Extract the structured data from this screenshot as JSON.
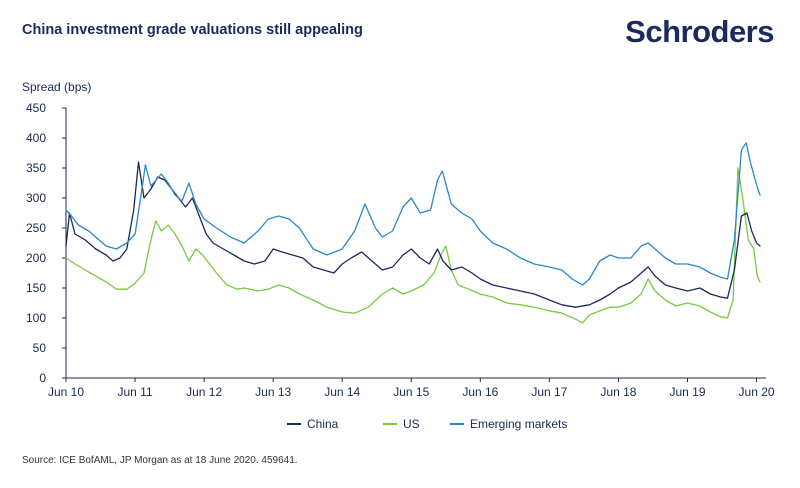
{
  "header": {
    "title": "China investment grade valuations still appealing",
    "logo": "Schroders"
  },
  "footer": {
    "source": "Source: ICE BofAML, JP Morgan as at 18 June 2020. 459641."
  },
  "colors": {
    "china": "#1c2b5a",
    "us": "#7ac943",
    "em": "#2b88c8",
    "axis": "#1b2a4a"
  },
  "chart_data": {
    "type": "line",
    "title": "China investment grade valuations still appealing",
    "ylabel": "Spread (bps)",
    "xlabel": "",
    "ylim": [
      0,
      450
    ],
    "yticks": [
      0,
      50,
      100,
      150,
      200,
      250,
      300,
      350,
      400,
      450
    ],
    "xlim": [
      2010.42,
      2020.47
    ],
    "xticks": [
      {
        "label": "Jun 10",
        "value": 2010.42
      },
      {
        "label": "Jun 11",
        "value": 2011.42
      },
      {
        "label": "Jun 12",
        "value": 2012.42
      },
      {
        "label": "Jun 13",
        "value": 2013.42
      },
      {
        "label": "Jun 14",
        "value": 2014.42
      },
      {
        "label": "Jun 15",
        "value": 2015.42
      },
      {
        "label": "Jun 16",
        "value": 2016.42
      },
      {
        "label": "Jun 17",
        "value": 2017.42
      },
      {
        "label": "Jun 18",
        "value": 2018.42
      },
      {
        "label": "Jun 19",
        "value": 2019.42
      },
      {
        "label": "Jun 20",
        "value": 2020.42
      }
    ],
    "grid": false,
    "legend_position": "bottom",
    "series": [
      {
        "name": "China",
        "color_key": "china",
        "points": [
          [
            2010.42,
            220
          ],
          [
            2010.47,
            275
          ],
          [
            2010.55,
            240
          ],
          [
            2010.7,
            230
          ],
          [
            2010.85,
            215
          ],
          [
            2011.0,
            205
          ],
          [
            2011.1,
            195
          ],
          [
            2011.2,
            200
          ],
          [
            2011.3,
            215
          ],
          [
            2011.4,
            280
          ],
          [
            2011.47,
            360
          ],
          [
            2011.55,
            300
          ],
          [
            2011.65,
            315
          ],
          [
            2011.75,
            335
          ],
          [
            2011.85,
            330
          ],
          [
            2011.95,
            315
          ],
          [
            2012.05,
            300
          ],
          [
            2012.15,
            285
          ],
          [
            2012.25,
            300
          ],
          [
            2012.35,
            270
          ],
          [
            2012.45,
            240
          ],
          [
            2012.55,
            225
          ],
          [
            2012.7,
            215
          ],
          [
            2012.85,
            205
          ],
          [
            2013.0,
            195
          ],
          [
            2013.15,
            190
          ],
          [
            2013.3,
            195
          ],
          [
            2013.42,
            215
          ],
          [
            2013.55,
            210
          ],
          [
            2013.7,
            205
          ],
          [
            2013.85,
            200
          ],
          [
            2014.0,
            185
          ],
          [
            2014.15,
            180
          ],
          [
            2014.3,
            175
          ],
          [
            2014.42,
            190
          ],
          [
            2014.55,
            200
          ],
          [
            2014.7,
            210
          ],
          [
            2014.85,
            195
          ],
          [
            2015.0,
            180
          ],
          [
            2015.15,
            185
          ],
          [
            2015.3,
            205
          ],
          [
            2015.42,
            215
          ],
          [
            2015.55,
            200
          ],
          [
            2015.68,
            190
          ],
          [
            2015.8,
            215
          ],
          [
            2015.88,
            195
          ],
          [
            2016.0,
            180
          ],
          [
            2016.15,
            185
          ],
          [
            2016.3,
            175
          ],
          [
            2016.42,
            165
          ],
          [
            2016.6,
            155
          ],
          [
            2016.8,
            150
          ],
          [
            2017.0,
            145
          ],
          [
            2017.2,
            140
          ],
          [
            2017.42,
            130
          ],
          [
            2017.6,
            122
          ],
          [
            2017.8,
            118
          ],
          [
            2018.0,
            122
          ],
          [
            2018.15,
            130
          ],
          [
            2018.3,
            140
          ],
          [
            2018.42,
            150
          ],
          [
            2018.6,
            160
          ],
          [
            2018.75,
            175
          ],
          [
            2018.85,
            185
          ],
          [
            2018.95,
            170
          ],
          [
            2019.1,
            155
          ],
          [
            2019.25,
            150
          ],
          [
            2019.42,
            145
          ],
          [
            2019.6,
            150
          ],
          [
            2019.75,
            140
          ],
          [
            2019.9,
            135
          ],
          [
            2020.0,
            133
          ],
          [
            2020.1,
            180
          ],
          [
            2020.2,
            270
          ],
          [
            2020.28,
            275
          ],
          [
            2020.35,
            245
          ],
          [
            2020.42,
            225
          ],
          [
            2020.47,
            220
          ]
        ]
      },
      {
        "name": "US",
        "color_key": "us",
        "points": [
          [
            2010.42,
            200
          ],
          [
            2010.55,
            190
          ],
          [
            2010.7,
            180
          ],
          [
            2010.85,
            170
          ],
          [
            2011.0,
            160
          ],
          [
            2011.15,
            148
          ],
          [
            2011.3,
            148
          ],
          [
            2011.42,
            158
          ],
          [
            2011.55,
            175
          ],
          [
            2011.65,
            230
          ],
          [
            2011.72,
            262
          ],
          [
            2011.8,
            245
          ],
          [
            2011.9,
            255
          ],
          [
            2012.0,
            240
          ],
          [
            2012.1,
            220
          ],
          [
            2012.2,
            195
          ],
          [
            2012.3,
            215
          ],
          [
            2012.4,
            205
          ],
          [
            2012.5,
            190
          ],
          [
            2012.6,
            175
          ],
          [
            2012.75,
            155
          ],
          [
            2012.9,
            148
          ],
          [
            2013.0,
            150
          ],
          [
            2013.2,
            145
          ],
          [
            2013.35,
            148
          ],
          [
            2013.5,
            155
          ],
          [
            2013.65,
            150
          ],
          [
            2013.8,
            140
          ],
          [
            2014.0,
            130
          ],
          [
            2014.2,
            118
          ],
          [
            2014.42,
            110
          ],
          [
            2014.6,
            108
          ],
          [
            2014.8,
            118
          ],
          [
            2015.0,
            140
          ],
          [
            2015.15,
            150
          ],
          [
            2015.3,
            140
          ],
          [
            2015.42,
            145
          ],
          [
            2015.6,
            155
          ],
          [
            2015.75,
            175
          ],
          [
            2015.85,
            205
          ],
          [
            2015.92,
            220
          ],
          [
            2016.0,
            180
          ],
          [
            2016.1,
            155
          ],
          [
            2016.25,
            148
          ],
          [
            2016.42,
            140
          ],
          [
            2016.6,
            135
          ],
          [
            2016.8,
            125
          ],
          [
            2017.0,
            122
          ],
          [
            2017.2,
            118
          ],
          [
            2017.42,
            112
          ],
          [
            2017.6,
            108
          ],
          [
            2017.8,
            98
          ],
          [
            2017.9,
            92
          ],
          [
            2018.0,
            105
          ],
          [
            2018.15,
            112
          ],
          [
            2018.3,
            118
          ],
          [
            2018.42,
            118
          ],
          [
            2018.6,
            125
          ],
          [
            2018.75,
            140
          ],
          [
            2018.85,
            165
          ],
          [
            2018.95,
            145
          ],
          [
            2019.1,
            130
          ],
          [
            2019.25,
            120
          ],
          [
            2019.42,
            125
          ],
          [
            2019.6,
            120
          ],
          [
            2019.75,
            110
          ],
          [
            2019.9,
            102
          ],
          [
            2020.0,
            100
          ],
          [
            2020.08,
            130
          ],
          [
            2020.15,
            350
          ],
          [
            2020.22,
            300
          ],
          [
            2020.3,
            230
          ],
          [
            2020.38,
            215
          ],
          [
            2020.43,
            170
          ],
          [
            2020.47,
            160
          ]
        ]
      },
      {
        "name": "Emerging markets",
        "color_key": "em",
        "points": [
          [
            2010.42,
            280
          ],
          [
            2010.5,
            270
          ],
          [
            2010.6,
            255
          ],
          [
            2010.75,
            245
          ],
          [
            2010.9,
            230
          ],
          [
            2011.0,
            220
          ],
          [
            2011.15,
            215
          ],
          [
            2011.3,
            225
          ],
          [
            2011.42,
            240
          ],
          [
            2011.5,
            300
          ],
          [
            2011.57,
            355
          ],
          [
            2011.65,
            320
          ],
          [
            2011.8,
            340
          ],
          [
            2011.9,
            325
          ],
          [
            2012.0,
            305
          ],
          [
            2012.1,
            295
          ],
          [
            2012.2,
            325
          ],
          [
            2012.3,
            290
          ],
          [
            2012.42,
            265
          ],
          [
            2012.6,
            250
          ],
          [
            2012.8,
            235
          ],
          [
            2013.0,
            225
          ],
          [
            2013.2,
            245
          ],
          [
            2013.35,
            265
          ],
          [
            2013.5,
            270
          ],
          [
            2013.65,
            265
          ],
          [
            2013.8,
            250
          ],
          [
            2014.0,
            215
          ],
          [
            2014.2,
            205
          ],
          [
            2014.42,
            215
          ],
          [
            2014.6,
            245
          ],
          [
            2014.75,
            290
          ],
          [
            2014.9,
            250
          ],
          [
            2015.0,
            235
          ],
          [
            2015.15,
            245
          ],
          [
            2015.3,
            285
          ],
          [
            2015.42,
            300
          ],
          [
            2015.55,
            275
          ],
          [
            2015.7,
            280
          ],
          [
            2015.8,
            330
          ],
          [
            2015.87,
            345
          ],
          [
            2016.0,
            290
          ],
          [
            2016.15,
            275
          ],
          [
            2016.3,
            265
          ],
          [
            2016.42,
            245
          ],
          [
            2016.6,
            225
          ],
          [
            2016.8,
            215
          ],
          [
            2017.0,
            200
          ],
          [
            2017.2,
            190
          ],
          [
            2017.42,
            185
          ],
          [
            2017.6,
            180
          ],
          [
            2017.75,
            165
          ],
          [
            2017.9,
            155
          ],
          [
            2018.0,
            165
          ],
          [
            2018.15,
            195
          ],
          [
            2018.3,
            205
          ],
          [
            2018.42,
            200
          ],
          [
            2018.6,
            200
          ],
          [
            2018.75,
            220
          ],
          [
            2018.85,
            225
          ],
          [
            2018.95,
            215
          ],
          [
            2019.1,
            200
          ],
          [
            2019.25,
            190
          ],
          [
            2019.42,
            190
          ],
          [
            2019.6,
            185
          ],
          [
            2019.75,
            175
          ],
          [
            2019.9,
            168
          ],
          [
            2020.0,
            165
          ],
          [
            2020.1,
            230
          ],
          [
            2020.2,
            380
          ],
          [
            2020.27,
            392
          ],
          [
            2020.33,
            360
          ],
          [
            2020.4,
            330
          ],
          [
            2020.44,
            315
          ],
          [
            2020.47,
            305
          ]
        ]
      }
    ]
  }
}
